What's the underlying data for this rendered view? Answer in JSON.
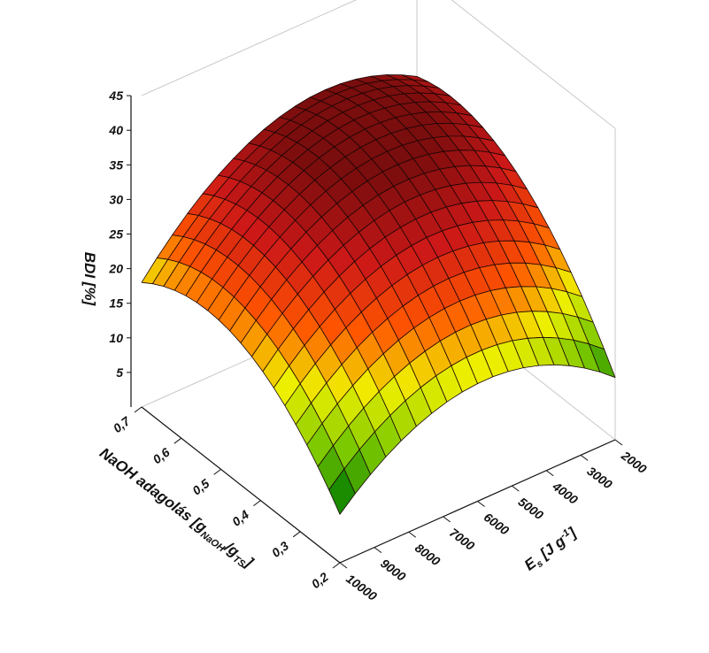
{
  "chart_data": {
    "type": "surface",
    "zlabel": "BDI [%]",
    "ylabel": "NaOH adagolás [g NaOH/g TS]",
    "xlabel": "Es [J g-1]",
    "xlabel_parts": {
      "main": "E",
      "sub": "s",
      "unit": " [J g",
      "sup": "-1",
      "close": "]"
    },
    "ylabel_parts": {
      "main": "NaOH adagolás [g",
      "sub1": "NaOH",
      "mid": "/g",
      "sub2": "TS",
      "close": "]"
    },
    "z_ticks": [
      "5",
      "10",
      "15",
      "20",
      "25",
      "30",
      "35",
      "40",
      "45"
    ],
    "z_tick_values": [
      5,
      10,
      15,
      20,
      25,
      30,
      35,
      40,
      45
    ],
    "x_ticks": [
      "2000",
      "3000",
      "4000",
      "5000",
      "6000",
      "7000",
      "8000",
      "9000",
      "10000"
    ],
    "x_tick_values": [
      2000,
      3000,
      4000,
      5000,
      6000,
      7000,
      8000,
      9000,
      10000
    ],
    "y_ticks": [
      "0,2",
      "0,3",
      "0,4",
      "0,5",
      "0,6",
      "0,7"
    ],
    "y_tick_values": [
      0.2,
      0.3,
      0.4,
      0.5,
      0.6,
      0.7
    ],
    "xlim": [
      2000,
      10000
    ],
    "ylim": [
      0.2,
      0.7
    ],
    "zlim": [
      0,
      45
    ],
    "surface_corners": {
      "x2000_y0.2": 11,
      "x2000_y0.7": 32,
      "x10000_y0.2": 9,
      "x10000_y0.7": 20,
      "peak": 33
    },
    "colormap": [
      "#007a00",
      "#7ac800",
      "#f0f000",
      "#ff5500",
      "#cc1818",
      "#7a0d0d"
    ],
    "grid": true
  }
}
